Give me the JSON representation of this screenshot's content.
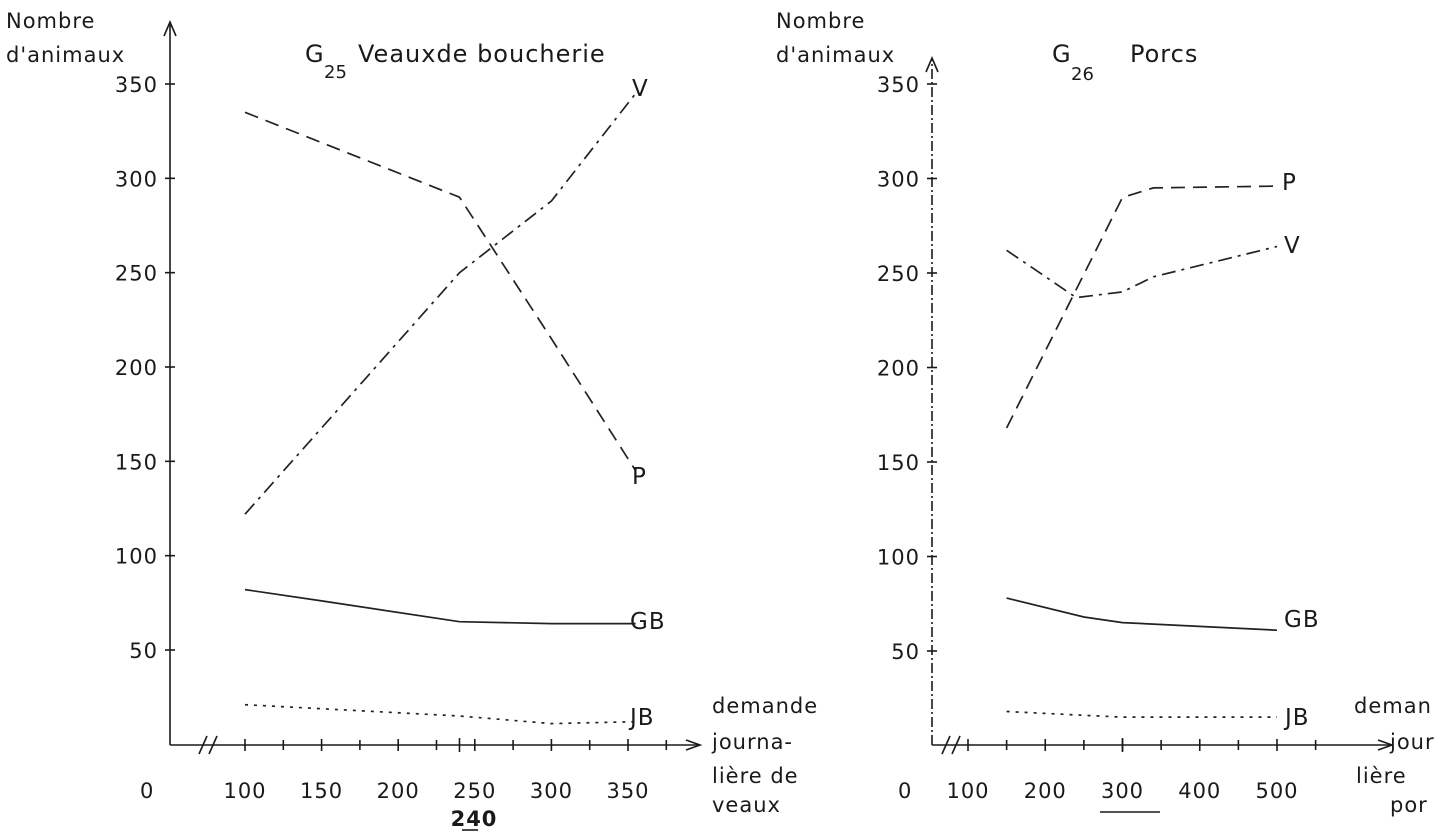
{
  "chart_data": [
    {
      "type": "line",
      "title_letter": "G",
      "title_sub": "25",
      "title_text": "Veauxde boucherie",
      "ylabel": [
        "Nombre",
        "d'animaux"
      ],
      "xlabel": [
        "demande",
        "journa-",
        "lière de",
        "veaux"
      ],
      "origin_label": "0",
      "x_ticks": [
        "100",
        "150",
        "200",
        "250",
        "300",
        "350"
      ],
      "x_tick_values": [
        100,
        150,
        200,
        250,
        300,
        350
      ],
      "y_ticks": [
        "50",
        "100",
        "150",
        "200",
        "250",
        "300",
        "350"
      ],
      "y_tick_values": [
        50,
        100,
        150,
        200,
        250,
        300,
        350
      ],
      "xlim": [
        0,
        400
      ],
      "ylim": [
        0,
        350
      ],
      "highlight_label": "240",
      "highlight_value": 240,
      "series": [
        {
          "name": "V",
          "style": "dashdot",
          "x": [
            100,
            240,
            300,
            355
          ],
          "y": [
            122,
            250,
            288,
            345
          ]
        },
        {
          "name": "P",
          "style": "dashed",
          "x": [
            100,
            240,
            300,
            355
          ],
          "y": [
            335,
            290,
            215,
            145
          ]
        },
        {
          "name": "GB",
          "style": "solid",
          "x": [
            100,
            150,
            240,
            300,
            355
          ],
          "y": [
            82,
            76,
            65,
            64,
            64
          ]
        },
        {
          "name": "JB",
          "style": "dotted",
          "x": [
            100,
            240,
            300,
            355
          ],
          "y": [
            21,
            15,
            11,
            12
          ]
        }
      ]
    },
    {
      "type": "line",
      "title_letter": "G",
      "title_sub": "26",
      "title_text": "Porcs",
      "ylabel": [
        "Nombre",
        "d'animaux"
      ],
      "xlabel": [
        "deman",
        "jour",
        "lière",
        "por"
      ],
      "origin_label": "0",
      "x_ticks": [
        "100",
        "200",
        "300",
        "400",
        "500"
      ],
      "x_tick_values": [
        100,
        200,
        300,
        400,
        500
      ],
      "y_ticks": [
        "50",
        "100",
        "150",
        "200",
        "250",
        "300",
        "350"
      ],
      "y_tick_values": [
        50,
        100,
        150,
        200,
        250,
        300,
        350
      ],
      "xlim": [
        0,
        600
      ],
      "ylim": [
        0,
        350
      ],
      "highlight_label": "300",
      "highlight_value": 300,
      "series": [
        {
          "name": "P",
          "style": "dashed",
          "x": [
            150,
            300,
            340,
            500
          ],
          "y": [
            168,
            290,
            295,
            296
          ]
        },
        {
          "name": "V",
          "style": "dashdot",
          "x": [
            150,
            240,
            300,
            340,
            500
          ],
          "y": [
            262,
            237,
            240,
            248,
            264
          ]
        },
        {
          "name": "GB",
          "style": "solid",
          "x": [
            150,
            250,
            300,
            500
          ],
          "y": [
            78,
            68,
            65,
            61
          ]
        },
        {
          "name": "JB",
          "style": "dotted",
          "x": [
            150,
            250,
            300,
            500
          ],
          "y": [
            18,
            16,
            15,
            15
          ]
        }
      ]
    }
  ]
}
